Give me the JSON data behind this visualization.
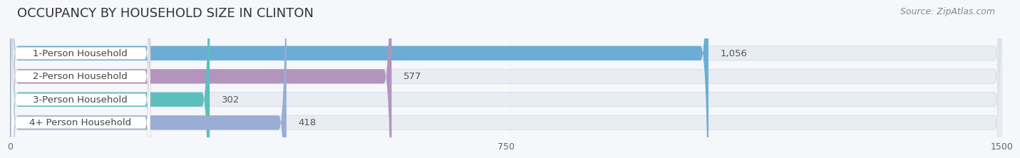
{
  "title": "OCCUPANCY BY HOUSEHOLD SIZE IN CLINTON",
  "source": "Source: ZipAtlas.com",
  "categories": [
    "1-Person Household",
    "2-Person Household",
    "3-Person Household",
    "4+ Person Household"
  ],
  "values": [
    1056,
    577,
    302,
    418
  ],
  "bar_colors": [
    "#6aaed6",
    "#b294bc",
    "#5dbebe",
    "#9aadd4"
  ],
  "bar_labels": [
    "1,056",
    "577",
    "302",
    "418"
  ],
  "xlim": [
    0,
    1500
  ],
  "xticks": [
    0,
    750,
    1500
  ],
  "background_color": "#f5f7fa",
  "bar_bg_color": "#e8edf3",
  "label_box_color": "#ffffff",
  "title_fontsize": 13,
  "label_fontsize": 9.5,
  "tick_fontsize": 9,
  "source_fontsize": 9
}
